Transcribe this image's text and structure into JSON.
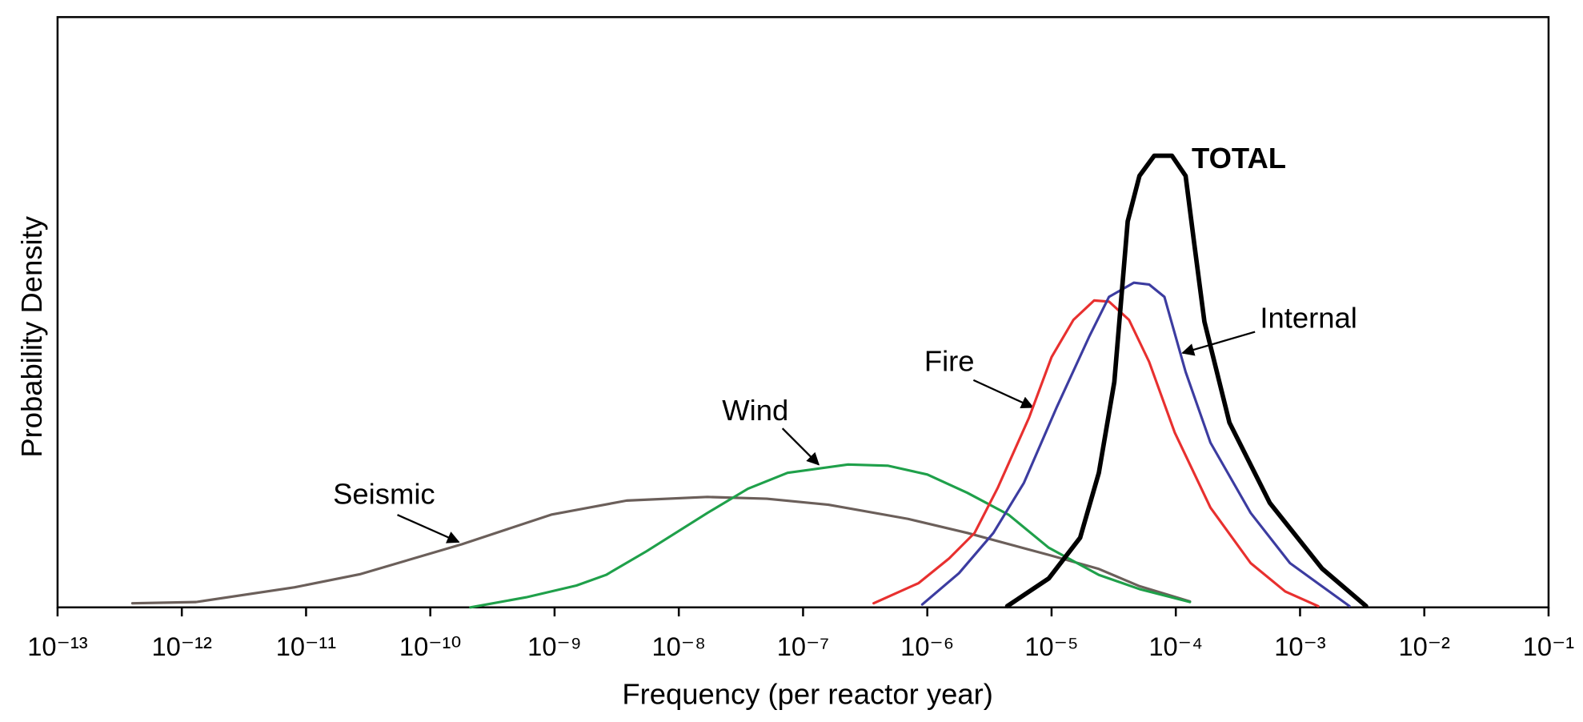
{
  "chart_data": {
    "type": "line",
    "x_label": "Frequency (per reactor year)",
    "y_label": "Probability Density",
    "xscale": "log",
    "xlim": [
      1e-13,
      0.1
    ],
    "ylim": [
      0,
      100
    ],
    "xticks": [
      {
        "value": 1e-13,
        "label": "10⁻¹³"
      },
      {
        "value": 1e-12,
        "label": "10⁻¹²"
      },
      {
        "value": 1e-11,
        "label": "10⁻¹¹"
      },
      {
        "value": 1e-10,
        "label": "10⁻¹⁰"
      },
      {
        "value": 1e-09,
        "label": "10⁻⁹"
      },
      {
        "value": 1e-08,
        "label": "10⁻⁸"
      },
      {
        "value": 1e-07,
        "label": "10⁻⁷"
      },
      {
        "value": 1e-06,
        "label": "10⁻⁶"
      },
      {
        "value": 1e-05,
        "label": "10⁻⁵"
      },
      {
        "value": 0.0001,
        "label": "10⁻⁴"
      },
      {
        "value": 0.001,
        "label": "10⁻³"
      },
      {
        "value": 0.01,
        "label": "10⁻²"
      },
      {
        "value": 0.1,
        "label": "10⁻¹"
      }
    ],
    "series": [
      {
        "name": "Seismic",
        "color": "#6b5f5a",
        "line_width": 2.5,
        "x": [
          4e-13,
          1.3e-12,
          8.1e-12,
          2.7e-11,
          1.8e-10,
          9.4e-10,
          3.8e-09,
          1.7e-08,
          5.1e-08,
          1.6e-07,
          7e-07,
          2.1e-06,
          9.5e-06,
          2.4e-05,
          5.1e-05,
          0.00013
        ],
        "values": [
          0.7,
          0.9,
          3.4,
          5.6,
          10.7,
          15.7,
          18.1,
          18.7,
          18.4,
          17.4,
          15.0,
          12.6,
          8.9,
          6.5,
          3.6,
          1.0
        ]
      },
      {
        "name": "Wind",
        "color": "#1fa04a",
        "line_width": 2.5,
        "x": [
          2.1e-10,
          5.9e-10,
          1.5e-09,
          2.6e-09,
          5.5e-09,
          1.7e-08,
          3.6e-08,
          7.5e-08,
          2.3e-07,
          4.8e-07,
          1e-06,
          2.1e-06,
          4.5e-06,
          9.5e-06,
          2.4e-05,
          5.1e-05,
          0.00013
        ],
        "values": [
          0,
          1.7,
          3.7,
          5.5,
          9.5,
          16.0,
          20.1,
          22.8,
          24.2,
          24.0,
          22.5,
          19.4,
          15.7,
          10.1,
          5.5,
          3.1,
          0.9
        ]
      },
      {
        "name": "Fire",
        "color": "#e8302f",
        "line_width": 2.5,
        "x": [
          3.7e-07,
          8.5e-07,
          1.5e-06,
          2.4e-06,
          3.7e-06,
          6.6e-06,
          1e-05,
          1.5e-05,
          2.2e-05,
          2.9e-05,
          4.2e-05,
          6.1e-05,
          9.8e-05,
          0.00019,
          0.0004,
          0.00076,
          0.0014
        ],
        "values": [
          0.7,
          4.1,
          8.3,
          12.6,
          20.3,
          32.2,
          42.4,
          48.7,
          52.0,
          51.8,
          48.7,
          41.6,
          29.6,
          16.9,
          7.5,
          2.7,
          0.2
        ]
      },
      {
        "name": "Internal",
        "color": "#3c3ca0",
        "line_width": 2.5,
        "x": [
          9.1e-07,
          1.8e-06,
          3.4e-06,
          6e-06,
          1.1e-05,
          2e-05,
          2.9e-05,
          4.6e-05,
          6.1e-05,
          8.1e-05,
          0.00012,
          0.00019,
          0.0004,
          0.00083,
          0.0025
        ],
        "values": [
          0.5,
          5.8,
          12.6,
          21.1,
          33.9,
          45.8,
          52.6,
          55.0,
          54.7,
          52.6,
          39.9,
          27.9,
          16.0,
          7.5,
          0.2
        ]
      },
      {
        "name": "TOTAL",
        "color": "#000000",
        "line_width": 4.5,
        "x": [
          4.4e-06,
          9.5e-06,
          1.7e-05,
          2.4e-05,
          3.2e-05,
          4.1e-05,
          5.1e-05,
          6.7e-05,
          9.3e-05,
          0.00012,
          0.00014,
          0.00017,
          0.00027,
          0.00057,
          0.0015,
          0.0034
        ],
        "values": [
          0.2,
          4.9,
          11.8,
          22.8,
          38.2,
          65.4,
          73.1,
          76.5,
          76.5,
          73.1,
          62.0,
          48.4,
          31.3,
          17.7,
          6.6,
          0.2
        ]
      }
    ]
  }
}
